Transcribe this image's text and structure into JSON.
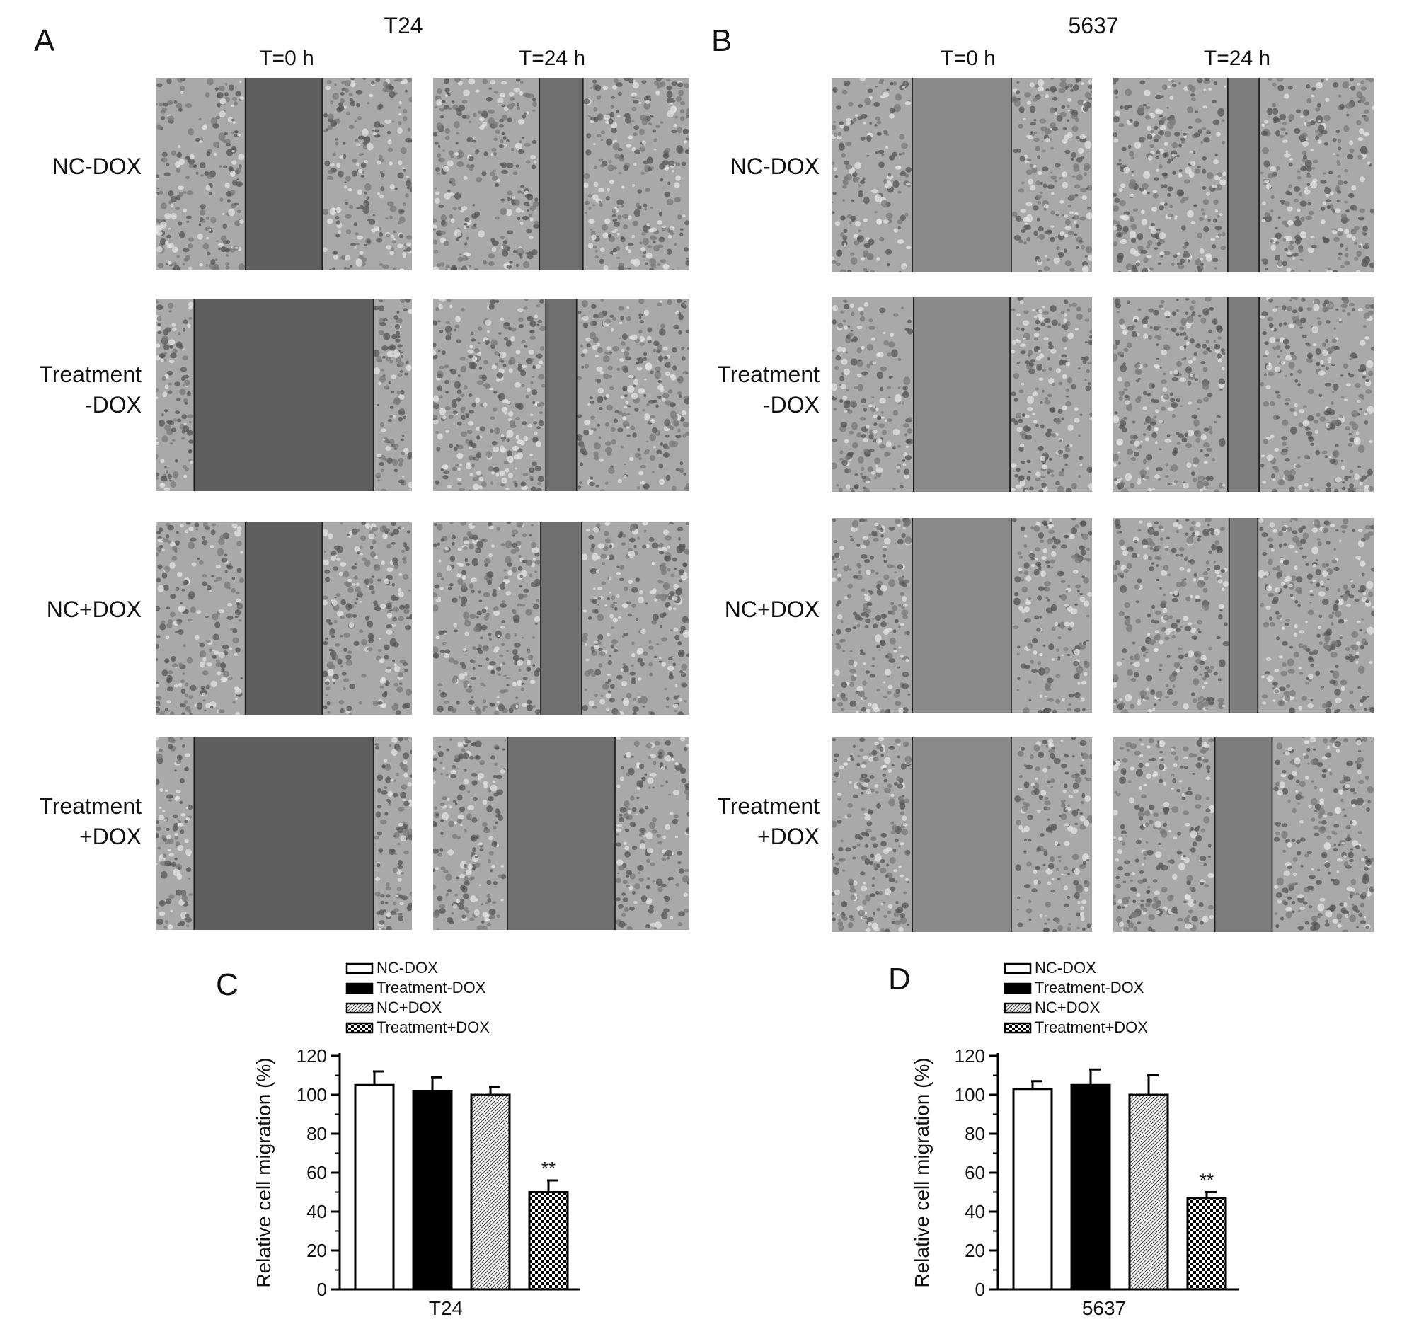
{
  "panels": {
    "A": {
      "letter": "A",
      "cell_line": "T24"
    },
    "B": {
      "letter": "B",
      "cell_line": "5637"
    },
    "C": {
      "letter": "C"
    },
    "D": {
      "letter": "D"
    }
  },
  "time_labels": [
    "T=0 h",
    "T=24 h"
  ],
  "row_labels": [
    {
      "line1": "NC-DOX",
      "line2": ""
    },
    {
      "line1": "Treatment",
      "line2": "-DOX"
    },
    {
      "line1": "NC+DOX",
      "line2": ""
    },
    {
      "line1": "Treatment",
      "line2": "+DOX"
    }
  ],
  "micrographs": {
    "T24": {
      "t0_gap": [
        0.3,
        0.7,
        0.3,
        0.7
      ],
      "t24_gap": [
        0.17,
        0.12,
        0.16,
        0.42
      ],
      "t0_tone": "#5e5e5e",
      "t24_tone": "#6f6f6f"
    },
    "5637": {
      "t0_gap": [
        0.38,
        0.37,
        0.38,
        0.38
      ],
      "t24_gap": [
        0.12,
        0.12,
        0.11,
        0.22
      ],
      "t0_tone": "#8a8a8a",
      "t24_tone": "#7d7d7d"
    }
  },
  "chart_data": [
    {
      "type": "bar",
      "panel": "C",
      "categories": [
        "NC-DOX",
        "Treatment-DOX",
        "NC+DOX",
        "Treatment+DOX"
      ],
      "values": [
        105,
        102,
        100,
        50
      ],
      "errors": [
        7,
        7,
        4,
        6
      ],
      "significance": [
        "",
        "",
        "",
        "**"
      ],
      "fills": [
        "white",
        "black",
        "fine-hatch",
        "checker"
      ],
      "xlabel": "T24",
      "ylabel": "Relative cell migration (%)",
      "ylim": [
        0,
        120
      ],
      "yticks": [
        0,
        20,
        40,
        60,
        80,
        100,
        120
      ],
      "legend": [
        "NC-DOX",
        "Treatment-DOX",
        "NC+DOX",
        "Treatment+DOX"
      ],
      "legend_position": "top-left",
      "grid": false
    },
    {
      "type": "bar",
      "panel": "D",
      "categories": [
        "NC-DOX",
        "Treatment-DOX",
        "NC+DOX",
        "Treatment+DOX"
      ],
      "values": [
        103,
        105,
        100,
        47
      ],
      "errors": [
        4,
        8,
        10,
        3
      ],
      "significance": [
        "",
        "",
        "",
        "**"
      ],
      "fills": [
        "white",
        "black",
        "fine-hatch",
        "checker"
      ],
      "xlabel": "5637",
      "ylabel": "Relative cell migration (%)",
      "ylim": [
        0,
        120
      ],
      "yticks": [
        0,
        20,
        40,
        60,
        80,
        100,
        120
      ],
      "legend": [
        "NC-DOX",
        "Treatment-DOX",
        "NC+DOX",
        "Treatment+DOX"
      ],
      "legend_position": "top-left",
      "grid": false
    }
  ]
}
